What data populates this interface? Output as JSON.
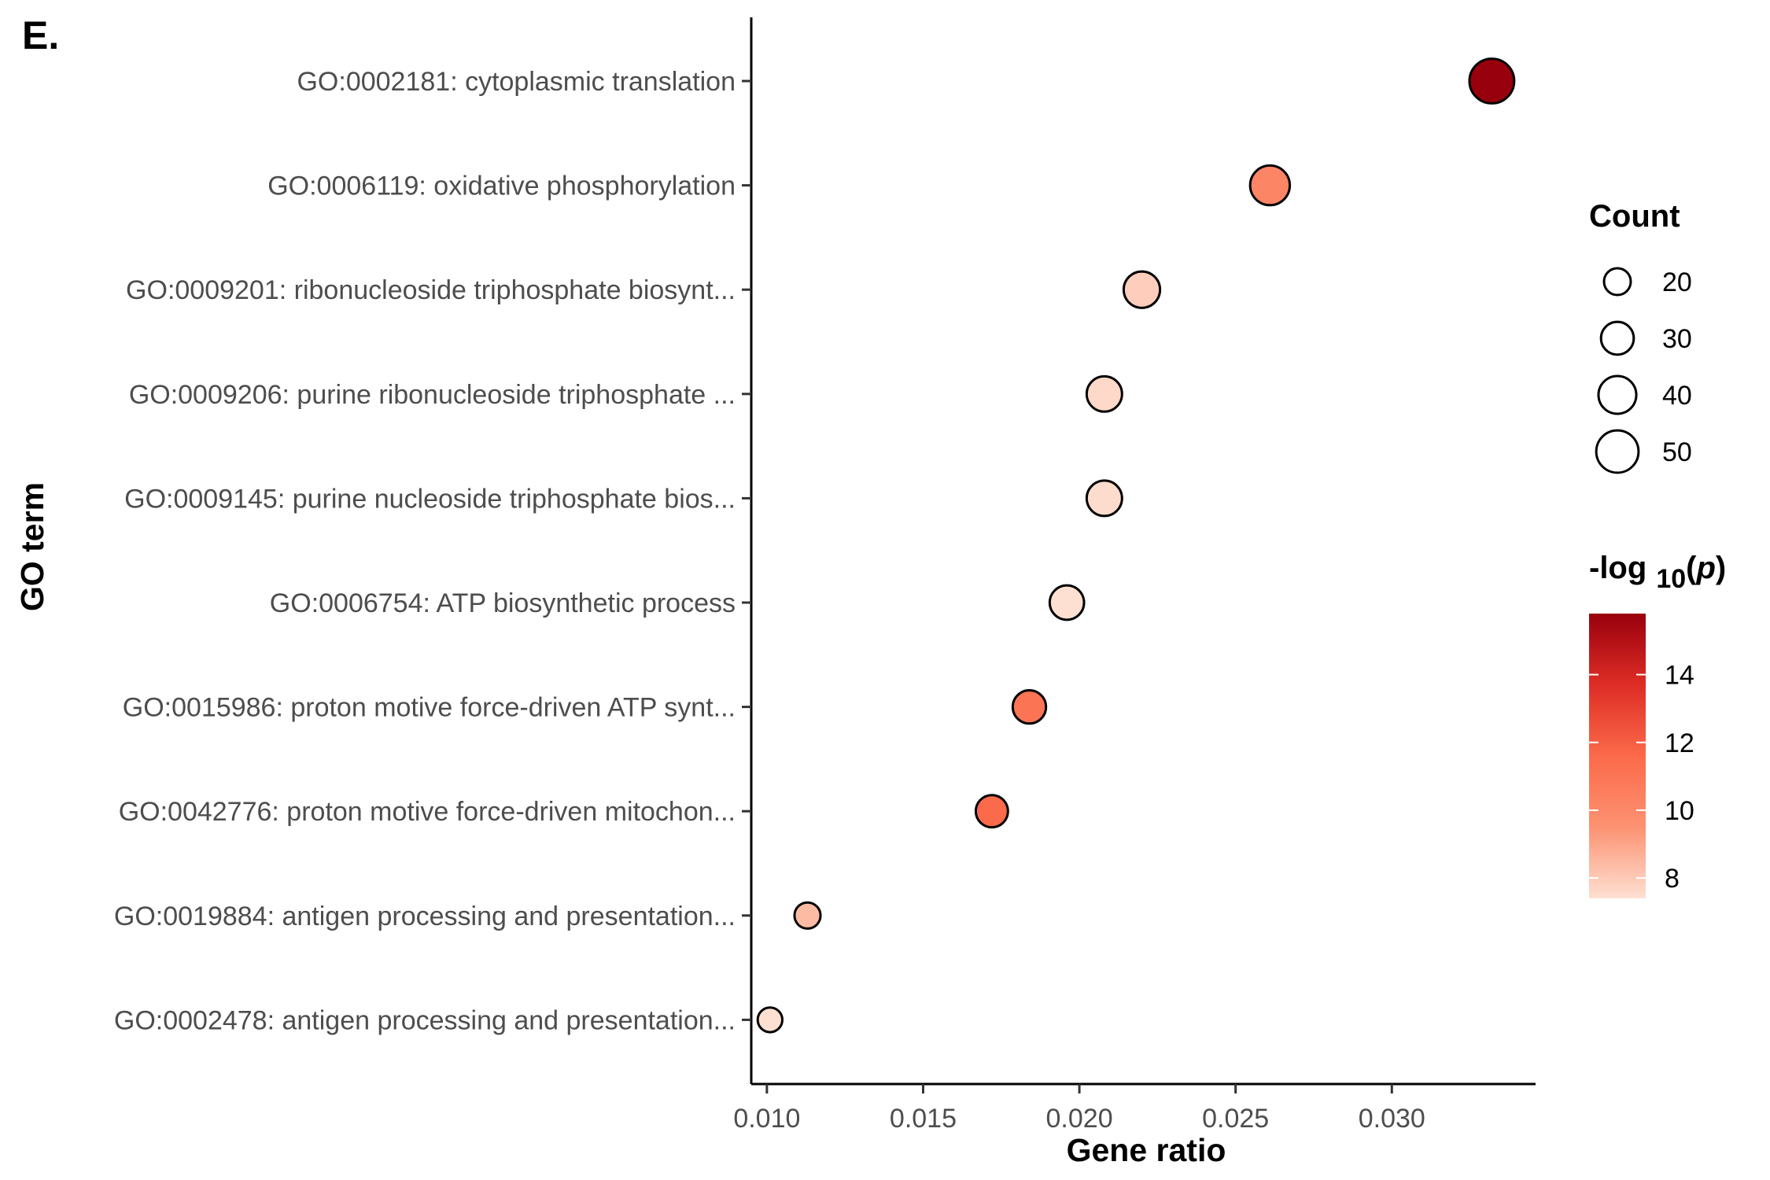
{
  "panel_label": "E.",
  "chart_data": {
    "type": "scatter",
    "xlabel": "Gene ratio",
    "ylabel": "GO term",
    "xlim": [
      0.0095,
      0.0346
    ],
    "x_ticks": [
      "0.010",
      "0.015",
      "0.020",
      "0.025",
      "0.030"
    ],
    "x_tick_values": [
      0.01,
      0.015,
      0.02,
      0.025,
      0.03
    ],
    "terms": [
      "GO:0002181: cytoplasmic translation",
      "GO:0006119: oxidative phosphorylation",
      "GO:0009201: ribonucleoside triphosphate biosynt...",
      "GO:0009206: purine ribonucleoside triphosphate ...",
      "GO:0009145: purine nucleoside triphosphate bios...",
      "GO:0006754: ATP biosynthetic process",
      "GO:0015986: proton motive force-driven ATP synt...",
      "GO:0042776: proton motive force-driven mitochon...",
      "GO:0019884: antigen processing and presentation...",
      "GO:0002478: antigen processing and presentation..."
    ],
    "gene_ratio": [
      0.0332,
      0.0261,
      0.022,
      0.0208,
      0.0208,
      0.0196,
      0.0184,
      0.0172,
      0.0113,
      0.0101
    ],
    "count": [
      56,
      44,
      37,
      35,
      35,
      33,
      31,
      29,
      19,
      17
    ],
    "neg_log10_p": [
      15.8,
      10.2,
      7.9,
      7.6,
      7.5,
      7.4,
      11.0,
      11.6,
      8.4,
      7.4
    ],
    "size_legend": {
      "title": "Count",
      "values": [
        20,
        30,
        40,
        50
      ],
      "labels": [
        "20",
        "30",
        "40",
        "50"
      ]
    },
    "color_legend": {
      "title_prefix": "-log",
      "title_subscript": "10",
      "title_open": "(",
      "title_var": "p",
      "title_close": ")",
      "min": 7.4,
      "max": 15.8,
      "ticks": [
        14,
        12,
        10,
        8
      ],
      "tick_labels": [
        "14",
        "12",
        "10",
        "8"
      ],
      "color_low": "#fee0d2",
      "color_high": "#99000d"
    },
    "grid": false,
    "legend_position": "right"
  }
}
